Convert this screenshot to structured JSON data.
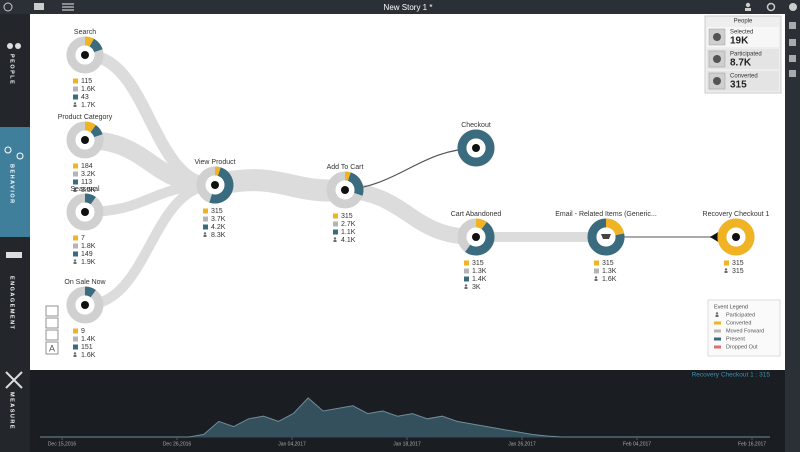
{
  "header": {
    "title": "New Story 1 *"
  },
  "sidebar": {
    "items": [
      "PEOPLE",
      "BEHAVIOR",
      "ENGAGEMENT",
      "MEASURE"
    ]
  },
  "people_panel": {
    "title": "People",
    "rows": [
      {
        "label": "Selected",
        "value": "19K"
      },
      {
        "label": "Participated",
        "value": "8.7K"
      },
      {
        "label": "Converted",
        "value": "315"
      }
    ]
  },
  "nodes": [
    {
      "label": "Search",
      "stats": [
        {
          "value": "115",
          "marker": "square",
          "color": "#f0b323"
        },
        {
          "value": "1.6K",
          "marker": "square",
          "color": "#b5b5b5"
        },
        {
          "value": "43",
          "marker": "square",
          "color": "#3a6b7e"
        },
        {
          "value": "1.7K",
          "marker": "person",
          "color": "#6b6b6b"
        }
      ]
    },
    {
      "label": "Product Category",
      "stats": [
        {
          "value": "184",
          "marker": "square",
          "color": "#f0b323"
        },
        {
          "value": "3.2K",
          "marker": "square",
          "color": "#b5b5b5"
        },
        {
          "value": "113",
          "marker": "square",
          "color": "#3a6b7e"
        },
        {
          "value": "3.5K",
          "marker": "person",
          "color": "#6b6b6b"
        }
      ]
    },
    {
      "label": "Seasonal",
      "stats": [
        {
          "value": "7",
          "marker": "square",
          "color": "#f0b323"
        },
        {
          "value": "1.8K",
          "marker": "square",
          "color": "#b5b5b5"
        },
        {
          "value": "149",
          "marker": "square",
          "color": "#3a6b7e"
        },
        {
          "value": "1.9K",
          "marker": "person",
          "color": "#6b6b6b"
        }
      ]
    },
    {
      "label": "On Sale Now",
      "stats": [
        {
          "value": "9",
          "marker": "square",
          "color": "#f0b323"
        },
        {
          "value": "1.4K",
          "marker": "square",
          "color": "#b5b5b5"
        },
        {
          "value": "151",
          "marker": "square",
          "color": "#3a6b7e"
        },
        {
          "value": "1.6K",
          "marker": "person",
          "color": "#6b6b6b"
        }
      ]
    },
    {
      "label": "View Product",
      "stats": [
        {
          "value": "315",
          "marker": "square",
          "color": "#f0b323"
        },
        {
          "value": "3.7K",
          "marker": "square",
          "color": "#b5b5b5"
        },
        {
          "value": "4.2K",
          "marker": "square",
          "color": "#3a6b7e"
        },
        {
          "value": "8.3K",
          "marker": "person",
          "color": "#6b6b6b"
        }
      ]
    },
    {
      "label": "Add To Cart",
      "stats": [
        {
          "value": "315",
          "marker": "square",
          "color": "#f0b323"
        },
        {
          "value": "2.7K",
          "marker": "square",
          "color": "#b5b5b5"
        },
        {
          "value": "1.1K",
          "marker": "square",
          "color": "#3a6b7e"
        },
        {
          "value": "4.1K",
          "marker": "person",
          "color": "#6b6b6b"
        }
      ]
    },
    {
      "label": "Checkout",
      "stats": []
    },
    {
      "label": "Cart Abandoned",
      "stats": [
        {
          "value": "315",
          "marker": "square",
          "color": "#f0b323"
        },
        {
          "value": "1.3K",
          "marker": "square",
          "color": "#b5b5b5"
        },
        {
          "value": "1.4K",
          "marker": "square",
          "color": "#3a6b7e"
        },
        {
          "value": "3K",
          "marker": "person",
          "color": "#6b6b6b"
        }
      ]
    },
    {
      "label": "Email - Related Items (Generic...",
      "stats": [
        {
          "value": "315",
          "marker": "square",
          "color": "#f0b323"
        },
        {
          "value": "1.3K",
          "marker": "square",
          "color": "#b5b5b5"
        },
        {
          "value": "1.6K",
          "marker": "person",
          "color": "#6b6b6b"
        }
      ]
    },
    {
      "label": "Recovery Checkout 1",
      "stats": [
        {
          "value": "315",
          "marker": "square",
          "color": "#f0b323"
        },
        {
          "value": "315",
          "marker": "person",
          "color": "#6b6b6b"
        }
      ]
    }
  ],
  "tools": {
    "label": "A"
  },
  "event_legend": {
    "title": "Event Legend",
    "items": [
      {
        "label": "Participated",
        "marker": "person",
        "color": "#6b6b6b"
      },
      {
        "label": "Converted",
        "marker": "bar",
        "color": "#f0b323"
      },
      {
        "label": "Moved Forward",
        "marker": "bar",
        "color": "#b5b5b5"
      },
      {
        "label": "Present",
        "marker": "bar",
        "color": "#3a6b7e"
      },
      {
        "label": "Dropped Out",
        "marker": "bar",
        "color": "#e07070"
      }
    ]
  },
  "timeline": {
    "label": "Recovery Checkout 1 : 315",
    "dates": [
      "Dec 15,2016",
      "Dec 26,2016",
      "Jan 04,2017",
      "Jan 18,2017",
      "Jan 26,2017",
      "Feb 04,2017",
      "Feb 16,2017"
    ],
    "values": [
      0,
      0,
      0,
      0,
      0,
      0,
      0,
      0,
      0,
      0,
      0,
      5,
      30,
      20,
      35,
      40,
      30,
      45,
      75,
      50,
      55,
      60,
      45,
      50,
      40,
      45,
      35,
      40,
      30,
      25,
      20,
      15,
      10,
      5,
      2,
      0,
      0,
      0,
      0,
      0,
      0,
      0,
      0,
      0,
      0,
      0,
      0,
      0,
      0,
      0
    ],
    "ylim": [
      0,
      100
    ],
    "color": "#6f8c99"
  }
}
